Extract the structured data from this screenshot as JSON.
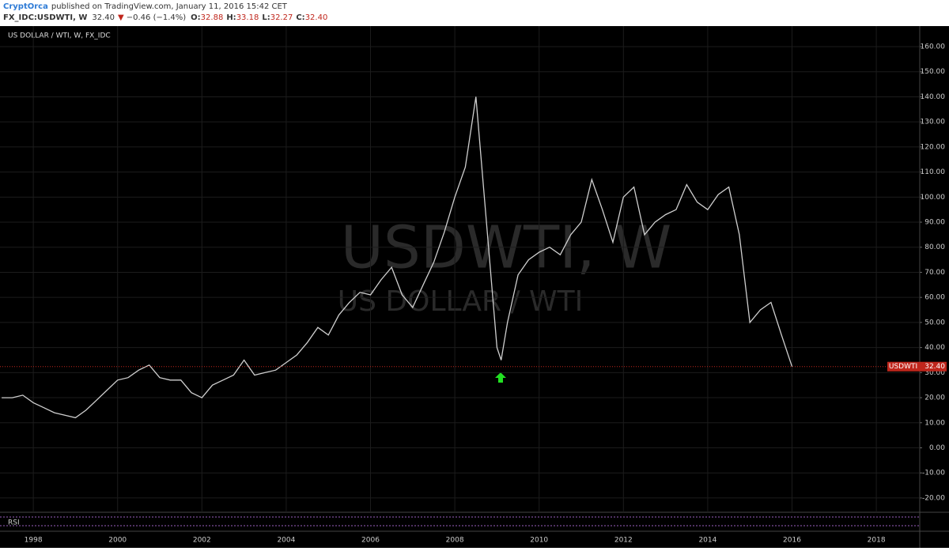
{
  "header": {
    "author": "CryptOrca",
    "published": "published on TradingView.com, January 11, 2016 15:42 CET",
    "symbol": "FX_IDC:USDWTI, W",
    "last": "32.40",
    "change": "−0.46 (−1.4%)",
    "o_label": "O:",
    "o": "32.88",
    "h_label": "H:",
    "h": "33.18",
    "l_label": "L:",
    "l": "32.27",
    "c_label": "C:",
    "c": "32.40"
  },
  "chart_data": {
    "type": "line",
    "title": "US DOLLAR / WTI, W, FX_IDC",
    "watermark": "USDWTI, W",
    "watermark_sub": "US DOLLAR / WTI",
    "indicator": "RSI",
    "x": [
      1997.25,
      1997.5,
      1997.75,
      1998.0,
      1998.25,
      1998.5,
      1998.75,
      1999.0,
      1999.25,
      1999.5,
      1999.75,
      2000.0,
      2000.25,
      2000.5,
      2000.75,
      2001.0,
      2001.25,
      2001.5,
      2001.75,
      2002.0,
      2002.25,
      2002.5,
      2002.75,
      2003.0,
      2003.25,
      2003.5,
      2003.75,
      2004.0,
      2004.25,
      2004.5,
      2004.75,
      2005.0,
      2005.25,
      2005.5,
      2005.75,
      2006.0,
      2006.25,
      2006.5,
      2006.75,
      2007.0,
      2007.25,
      2007.5,
      2007.75,
      2008.0,
      2008.25,
      2008.5,
      2008.75,
      2009.0,
      2009.1,
      2009.25,
      2009.5,
      2009.75,
      2010.0,
      2010.25,
      2010.5,
      2010.75,
      2011.0,
      2011.25,
      2011.5,
      2011.75,
      2012.0,
      2012.25,
      2012.5,
      2012.75,
      2013.0,
      2013.25,
      2013.5,
      2013.75,
      2014.0,
      2014.25,
      2014.5,
      2014.75,
      2015.0,
      2015.25,
      2015.5,
      2015.75,
      2016.0
    ],
    "series": [
      {
        "name": "USDWTI",
        "color": "#cfcfcf",
        "values": [
          20,
          20,
          21,
          18,
          16,
          14,
          13,
          12,
          15,
          19,
          23,
          27,
          28,
          31,
          33,
          28,
          27,
          27,
          22,
          20,
          25,
          27,
          29,
          35,
          29,
          30,
          31,
          34,
          37,
          42,
          48,
          45,
          53,
          58,
          62,
          61,
          67,
          72,
          61,
          56,
          65,
          74,
          86,
          100,
          112,
          140,
          90,
          40,
          35,
          50,
          69,
          75,
          78,
          80,
          77,
          85,
          90,
          107,
          95,
          82,
          100,
          104,
          85,
          90,
          93,
          95,
          105,
          98,
          95,
          101,
          104,
          85,
          50,
          55,
          58,
          45,
          32.4
        ],
        "value_labels": [
          null,
          null,
          null,
          null,
          null,
          null,
          null,
          null,
          null,
          null,
          null,
          null,
          null,
          null,
          null,
          null,
          null,
          null,
          null,
          null,
          null,
          null,
          null,
          null,
          null,
          null,
          null,
          null,
          null,
          null,
          null,
          null,
          null,
          null,
          null,
          null,
          null,
          null,
          null,
          null,
          null,
          null,
          null,
          null,
          null,
          null,
          null,
          null,
          null,
          null,
          null,
          null,
          null,
          null,
          null,
          null,
          null,
          null,
          null,
          null,
          null,
          null,
          null,
          null,
          null,
          null,
          null,
          null,
          null,
          null,
          null,
          null,
          null,
          null,
          null,
          null,
          "32.40"
        ]
      }
    ],
    "xlim": [
      1997.21,
      2019.03
    ],
    "xticks": [
      1998,
      2000,
      2002,
      2004,
      2006,
      2008,
      2010,
      2012,
      2014,
      2016,
      2018
    ],
    "ylim": [
      -25.7,
      168.2
    ],
    "yticks": [
      {
        "value": -20,
        "label": "-20.00"
      },
      {
        "value": -10,
        "label": "-10.00"
      },
      {
        "value": 0,
        "label": "0.00"
      },
      {
        "value": 10,
        "label": "10.00"
      },
      {
        "value": 20,
        "label": "20.00"
      },
      {
        "value": 30,
        "label": "30.00"
      },
      {
        "value": 40,
        "label": "40.00"
      },
      {
        "value": 50,
        "label": "50.00"
      },
      {
        "value": 60,
        "label": "60.00"
      },
      {
        "value": 70,
        "label": "70.00"
      },
      {
        "value": 80,
        "label": "80.00"
      },
      {
        "value": 90,
        "label": "90.00"
      },
      {
        "value": 100,
        "label": "100.00"
      },
      {
        "value": 110,
        "label": "110.00"
      },
      {
        "value": 120,
        "label": "120.00"
      },
      {
        "value": 130,
        "label": "130.00"
      },
      {
        "value": 140,
        "label": "140.00"
      },
      {
        "value": 150,
        "label": "150.00"
      },
      {
        "value": 160,
        "label": "160.00"
      }
    ],
    "grid": true
  }
}
